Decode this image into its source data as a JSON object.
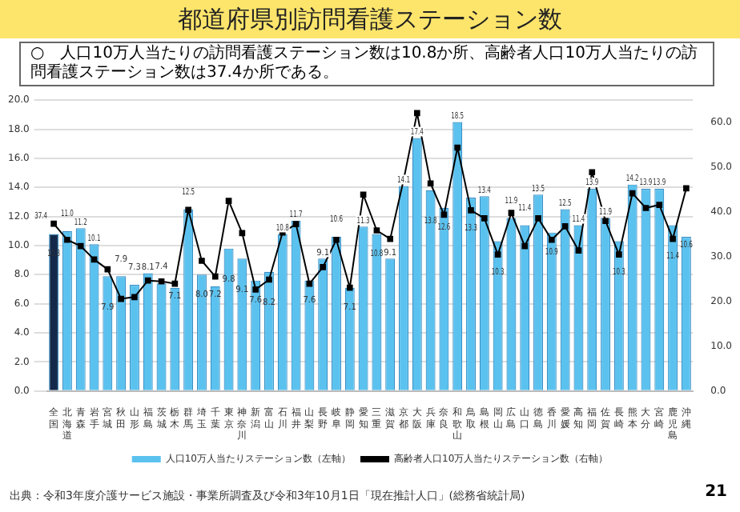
{
  "chart_data": {
    "type": "bar",
    "title": "都道府県別訪問看護ステーション数",
    "subtitle": "○　人口10万人当たりの訪問看護ステーション数は10.8か所、高齢者人口10万人当たりの訪問看護ステーション数は37.4か所である。",
    "categories": [
      "全国",
      "北海道",
      "青森",
      "岩手",
      "宮城",
      "秋田",
      "山形",
      "福島",
      "茨城",
      "栃木",
      "群馬",
      "埼玉",
      "千葉",
      "東京",
      "神奈川",
      "新潟",
      "富山",
      "石川",
      "福井",
      "山梨",
      "長野",
      "岐阜",
      "静岡",
      "愛知",
      "三重",
      "滋賀",
      "京都",
      "大阪",
      "兵庫",
      "奈良",
      "和歌山",
      "鳥取",
      "島根",
      "岡山",
      "広島",
      "山口",
      "徳島",
      "香川",
      "愛媛",
      "高知",
      "福岡",
      "佐賀",
      "長崎",
      "熊本",
      "大分",
      "宮崎",
      "鹿児島",
      "沖縄"
    ],
    "series": [
      {
        "name": "人口10万人当たりステーション数（左軸）",
        "color": "#5bc2ef",
        "colors": [
          "#14284a",
          "#5bc2ef",
          "#5bc2ef",
          "#5bc2ef",
          "#5bc2ef",
          "#5bc2ef",
          "#5bc2ef",
          "#5bc2ef",
          "#5bc2ef",
          "#5bc2ef",
          "#5bc2ef",
          "#5bc2ef",
          "#5bc2ef",
          "#5bc2ef",
          "#5bc2ef",
          "#5bc2ef",
          "#5bc2ef",
          "#5bc2ef",
          "#5bc2ef",
          "#5bc2ef",
          "#5bc2ef",
          "#5bc2ef",
          "#5bc2ef",
          "#5bc2ef",
          "#5bc2ef",
          "#5bc2ef",
          "#5bc2ef",
          "#5bc2ef",
          "#5bc2ef",
          "#5bc2ef",
          "#5bc2ef",
          "#5bc2ef",
          "#5bc2ef",
          "#5bc2ef",
          "#5bc2ef",
          "#5bc2ef",
          "#5bc2ef",
          "#5bc2ef",
          "#5bc2ef",
          "#5bc2ef",
          "#5bc2ef",
          "#5bc2ef",
          "#5bc2ef",
          "#5bc2ef",
          "#5bc2ef",
          "#5bc2ef",
          "#5bc2ef",
          "#5bc2ef"
        ],
        "values": [
          10.8,
          11.0,
          11.2,
          10.1,
          7.9,
          7.9,
          7.3,
          8.1,
          7.4,
          7.1,
          12.5,
          8.0,
          7.2,
          9.8,
          9.1,
          7.6,
          8.2,
          10.8,
          11.7,
          7.6,
          9.1,
          10.6,
          7.1,
          11.3,
          10.8,
          9.1,
          14.1,
          17.4,
          13.8,
          12.6,
          18.5,
          13.3,
          13.4,
          10.3,
          11.9,
          11.4,
          13.5,
          10.9,
          12.5,
          11.4,
          13.9,
          11.9,
          10.3,
          14.2,
          13.9,
          13.9,
          11.4,
          10.6
        ],
        "value_labels": [
          "10.8",
          "11.0",
          "11.2",
          "10.1",
          "7.9",
          "7.9",
          "7.3",
          "8.1",
          "7.4",
          "7.1",
          "12.5",
          "8.0",
          "7.2",
          "9.8",
          "9.1",
          "7.6",
          "8.2",
          "10.8",
          "11.7",
          "7.6",
          "9.1",
          "10.6",
          "7.1",
          "11.3",
          "10.8",
          "9.1",
          "14.1",
          "17.4",
          "13.8",
          "12.6",
          "18.5",
          "13.3",
          "13.4",
          "10.3",
          "11.9",
          "11.4",
          "13.5",
          "10.9",
          "12.5",
          "11.4",
          "13.9",
          "11.9",
          "10.3",
          "14.2",
          "13.9",
          "13.9",
          "11.4",
          "10.6"
        ]
      },
      {
        "name": "高齢者人口10万人当たりステーション数（右軸）",
        "type": "line",
        "axis": "y2",
        "color": "#000000",
        "marker": "square",
        "values": [
          37.4,
          33.8,
          32.4,
          29.4,
          27.2,
          20.6,
          21.0,
          24.7,
          24.5,
          24.0,
          40.5,
          29.1,
          25.6,
          42.5,
          35.3,
          22.7,
          24.9,
          35.4,
          37.3,
          24.0,
          27.7,
          33.8,
          23.1,
          43.9,
          35.9,
          34.0,
          47.2,
          62.1,
          46.4,
          39.4,
          54.4,
          40.4,
          38.6,
          30.5,
          39.8,
          32.4,
          38.6,
          33.8,
          36.8,
          31.4,
          48.9,
          38.0,
          30.5,
          44.2,
          40.9,
          41.6,
          34.0,
          45.3
        ],
        "value_labels": [
          "37.4",
          null,
          null,
          null,
          null,
          null,
          null,
          null,
          null,
          null,
          null,
          null,
          null,
          null,
          null,
          null,
          null,
          null,
          null,
          null,
          null,
          null,
          null,
          null,
          null,
          null,
          null,
          null,
          null,
          null,
          null,
          null,
          null,
          null,
          null,
          null,
          null,
          null,
          null,
          null,
          null,
          null,
          null,
          null,
          null,
          null,
          null,
          null
        ]
      }
    ],
    "ylim": [
      0,
      20
    ],
    "yticks": [
      {
        "value": 0,
        "label": "0.0"
      },
      {
        "value": 2,
        "label": "2.0"
      },
      {
        "value": 4,
        "label": "4.0"
      },
      {
        "value": 6,
        "label": "6.0"
      },
      {
        "value": 8,
        "label": "8.0"
      },
      {
        "value": 10,
        "label": "10.0"
      },
      {
        "value": 12,
        "label": "12.0"
      },
      {
        "value": 14,
        "label": "14.0"
      },
      {
        "value": 16,
        "label": "16.0"
      },
      {
        "value": 18,
        "label": "18.0"
      },
      {
        "value": 20,
        "label": "20.0"
      }
    ],
    "y2lim": [
      0,
      65
    ],
    "y2ticks": [
      {
        "value": 0,
        "label": "0.0"
      },
      {
        "value": 10,
        "label": "10.0"
      },
      {
        "value": 20,
        "label": "20.0"
      },
      {
        "value": 30,
        "label": "30.0"
      },
      {
        "value": 40,
        "label": "40.0"
      },
      {
        "value": 50,
        "label": "50.0"
      },
      {
        "value": 60,
        "label": "60.0"
      }
    ],
    "grid": "y",
    "legend": "bottom",
    "annotations": [
      "出典：令和3年度介護サービス施設・事業所調査及び令和3年10月1日「現在推計人口」(総務省統計局)",
      "21"
    ]
  }
}
